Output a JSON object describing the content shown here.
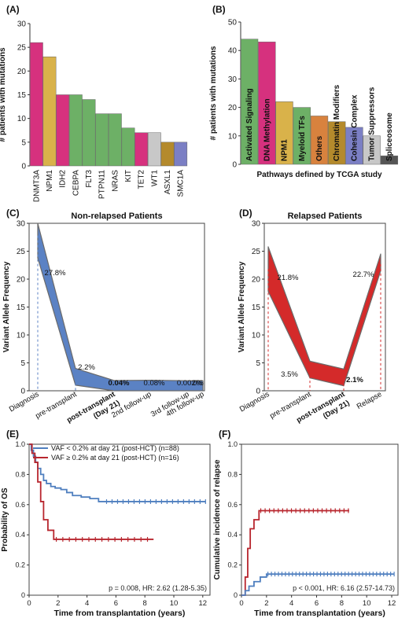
{
  "chart_data": [
    {
      "panel": "(A)",
      "type": "bar",
      "ylabel": "# patients with mutations",
      "ylim": [
        0,
        30
      ],
      "yticks": [
        0,
        5,
        10,
        15,
        20,
        25,
        30
      ],
      "categories": [
        "DNMT3A",
        "NPM1",
        "IDH2",
        "CEBPA",
        "FLT3",
        "PTPN11",
        "NRAS",
        "KIT",
        "TET2",
        "WT1",
        "ASXL1",
        "SMC1A"
      ],
      "values": [
        26,
        23,
        15,
        15,
        14,
        11,
        11,
        8,
        7,
        7,
        5,
        5
      ],
      "colors": [
        "#d6317e",
        "#d9b24a",
        "#d6317e",
        "#6db066",
        "#6db066",
        "#6db066",
        "#6db066",
        "#6db066",
        "#d6317e",
        "#c8c8c8",
        "#b48a2c",
        "#7b7fc4"
      ]
    },
    {
      "panel": "(B)",
      "type": "bar",
      "xlabel": "Pathways defined by TCGA study",
      "ylabel": "# patients with mutations",
      "ylim": [
        0,
        50
      ],
      "yticks": [
        0,
        10,
        20,
        30,
        40,
        50
      ],
      "categories": [
        "Activated Signaling",
        "DNA Methylation",
        "NPM1",
        "Myeloid TFs",
        "Others",
        "Chromatin Modifiers",
        "Cohesin Complex",
        "Tumor Suppressors",
        "Spliceosome"
      ],
      "values": [
        44,
        43,
        22,
        20,
        17,
        15,
        13,
        10,
        3
      ],
      "colors": [
        "#6db066",
        "#d6317e",
        "#d9b24a",
        "#6db066",
        "#d8823e",
        "#b48a2c",
        "#7b7fc4",
        "#c8c8c8",
        "#555555"
      ]
    },
    {
      "panel": "(C)",
      "type": "area",
      "title": "Non-relapsed Patients",
      "ylabel": "Variant Allele Frequency",
      "ylim": [
        0,
        30
      ],
      "yticks": [
        0,
        5,
        10,
        15,
        20,
        25,
        30
      ],
      "categories": [
        "Diagnosis",
        "pre-transplant",
        "post-transplant (Day 21)",
        "2nd follow-up",
        "3rd follow-up",
        "4th follow-up"
      ],
      "values": [
        27.8,
        2.2,
        0.04,
        0.08,
        0.002,
        0
      ],
      "labels": [
        "27.8%",
        "2.2%",
        "0.04%",
        "0.08%",
        "0.002%",
        "0%"
      ],
      "color": "#5b82c4"
    },
    {
      "panel": "(D)",
      "type": "area",
      "title": "Relapsed Patients",
      "ylabel": "Variant Allele Frequency",
      "ylim": [
        0,
        30
      ],
      "yticks": [
        0,
        5,
        10,
        15,
        20,
        25,
        30
      ],
      "categories": [
        "Diagnosis",
        "pre-transplant",
        "post-transplant (Day 21)",
        "Relapse"
      ],
      "values": [
        21.8,
        3.5,
        2.1,
        22.7
      ],
      "labels": [
        "21.8%",
        "3.5%",
        "2.1%",
        "22.7%"
      ],
      "color": "#d42a2a"
    },
    {
      "panel": "(E)",
      "type": "line",
      "xlabel": "Time from transplantation (years)",
      "ylabel": "Probability of OS",
      "xlim": [
        0,
        12.5
      ],
      "ylim": [
        0,
        1.0
      ],
      "xticks": [
        0,
        2,
        4,
        6,
        8,
        10,
        12
      ],
      "yticks": [
        0,
        0.2,
        0.4,
        0.6,
        0.8,
        1.0
      ],
      "annotation": "p = 0.008, HR: 2.62 (1.28-5.35)",
      "series": [
        {
          "name": "VAF < 0.2% at day 21 (post-HCT) (n=88)",
          "color": "#4f7fbf",
          "x": [
            0,
            0.15,
            0.3,
            0.45,
            0.6,
            0.8,
            1.0,
            1.2,
            1.5,
            1.8,
            2.2,
            2.6,
            3.0,
            3.6,
            4.2,
            4.8,
            5.2,
            12.2
          ],
          "y": [
            1.0,
            0.96,
            0.92,
            0.88,
            0.84,
            0.8,
            0.76,
            0.74,
            0.72,
            0.71,
            0.7,
            0.68,
            0.66,
            0.65,
            0.64,
            0.62,
            0.62,
            0.62
          ]
        },
        {
          "name": "VAF ≥ 0.2% at day 21 (post-HCT) (n=16)",
          "color": "#b8262e",
          "x": [
            0,
            0.2,
            0.4,
            0.6,
            0.8,
            1.0,
            1.3,
            1.7,
            8.6
          ],
          "y": [
            1.0,
            0.94,
            0.88,
            0.75,
            0.62,
            0.5,
            0.43,
            0.37,
            0.37
          ]
        }
      ]
    },
    {
      "panel": "(F)",
      "type": "line",
      "xlabel": "Time from transplantation (years)",
      "ylabel": "Cumulative incidence of relapse",
      "xlim": [
        0,
        12.5
      ],
      "ylim": [
        0,
        1.0
      ],
      "xticks": [
        0,
        2,
        4,
        6,
        8,
        10,
        12
      ],
      "yticks": [
        0,
        0.2,
        0.4,
        0.6,
        0.8,
        1.0
      ],
      "annotation": "p < 0.001, HR: 6.16 (2.57-14.73)",
      "series": [
        {
          "name": "VAF ≥ 0.2% at day 21 (post-HCT)",
          "color": "#b8262e",
          "x": [
            0,
            0.3,
            0.5,
            0.7,
            1.0,
            1.4,
            8.6
          ],
          "y": [
            0,
            0.12,
            0.31,
            0.44,
            0.5,
            0.56,
            0.56
          ]
        },
        {
          "name": "VAF < 0.2% at day 21 (post-HCT)",
          "color": "#4f7fbf",
          "x": [
            0,
            0.3,
            0.6,
            1.0,
            1.5,
            2.0,
            12.2
          ],
          "y": [
            0,
            0.03,
            0.06,
            0.09,
            0.12,
            0.14,
            0.14
          ]
        }
      ]
    }
  ]
}
